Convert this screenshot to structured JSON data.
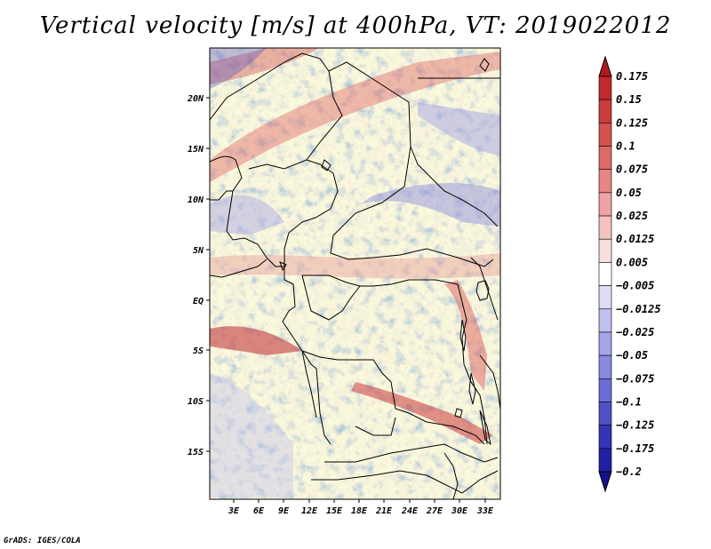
{
  "title": "Vertical velocity [m/s] at 400hPa, VT: 2019022012",
  "credit": "GrADS: IGES/COLA",
  "map": {
    "lat_labels": [
      "20N",
      "15N",
      "10N",
      "5N",
      "EQ",
      "5S",
      "10S",
      "15S"
    ],
    "lon_labels": [
      "3E",
      "6E",
      "9E",
      "12E",
      "15E",
      "18E",
      "21E",
      "24E",
      "27E",
      "30E",
      "33E"
    ]
  },
  "colorbar": {
    "labels": [
      "0.175",
      "0.15",
      "0.125",
      "0.1",
      "0.075",
      "0.05",
      "0.025",
      "0.0125",
      "0.005",
      "−0.005",
      "−0.0125",
      "−0.025",
      "−0.05",
      "−0.075",
      "−0.1",
      "−0.125",
      "−0.175",
      "−0.2"
    ],
    "colors": [
      "#b01820",
      "#c02a2e",
      "#cc3c3c",
      "#d65050",
      "#de6a68",
      "#e68684",
      "#eea4a2",
      "#f4c2c0",
      "#f8dedc",
      "#ffffff",
      "#dcdcf4",
      "#c0c0ee",
      "#a4a4e6",
      "#8888de",
      "#6c6cd4",
      "#5050c6",
      "#3434b6",
      "#2020a2",
      "#14108c"
    ]
  }
}
